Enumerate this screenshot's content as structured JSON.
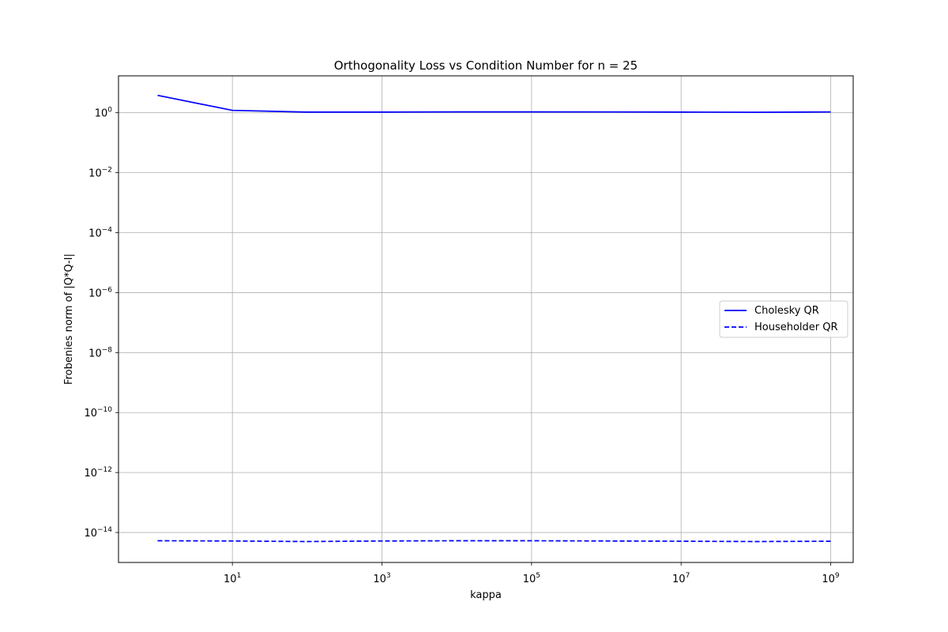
{
  "chart_data": {
    "type": "line",
    "title": "Orthogonality Loss vs Condition Number for n = 25",
    "xlabel": "kappa",
    "ylabel": "Frobenies norm of |Q*Q-I|",
    "x_scale": "log",
    "y_scale": "log",
    "xlim": [
      0.3,
      2000000000.0
    ],
    "ylim": [
      1e-15,
      17
    ],
    "grid": true,
    "legend_position": "center-right",
    "x_ticks": [
      {
        "value": 10,
        "base": "10",
        "exp": "1"
      },
      {
        "value": 1000,
        "base": "10",
        "exp": "3"
      },
      {
        "value": 100000,
        "base": "10",
        "exp": "5"
      },
      {
        "value": 10000000,
        "base": "10",
        "exp": "7"
      },
      {
        "value": 1000000000,
        "base": "10",
        "exp": "9"
      }
    ],
    "y_ticks": [
      {
        "value": 1,
        "base": "10",
        "exp": "0"
      },
      {
        "value": 0.01,
        "base": "10",
        "exp": "−2"
      },
      {
        "value": 0.0001,
        "base": "10",
        "exp": "−4"
      },
      {
        "value": 1e-06,
        "base": "10",
        "exp": "−6"
      },
      {
        "value": 1e-08,
        "base": "10",
        "exp": "−8"
      },
      {
        "value": 1e-10,
        "base": "10",
        "exp": "−10"
      },
      {
        "value": 1e-12,
        "base": "10",
        "exp": "−12"
      },
      {
        "value": 1e-14,
        "base": "10",
        "exp": "−14"
      }
    ],
    "x": [
      1,
      10,
      100,
      1000,
      10000,
      100000,
      1000000,
      10000000,
      100000000,
      1000000000
    ],
    "series": [
      {
        "name": "Cholesky QR",
        "style": "solid",
        "color": "#0000ff",
        "values": [
          3.8,
          1.2,
          1.05,
          1.05,
          1.07,
          1.07,
          1.06,
          1.05,
          1.04,
          1.06
        ]
      },
      {
        "name": "Householder QR",
        "style": "dashed",
        "color": "#0000ff",
        "values": [
          5.3e-15,
          5.2e-15,
          5e-15,
          5.2e-15,
          5.3e-15,
          5.3e-15,
          5.2e-15,
          5.1e-15,
          5e-15,
          5.1e-15
        ]
      }
    ]
  }
}
